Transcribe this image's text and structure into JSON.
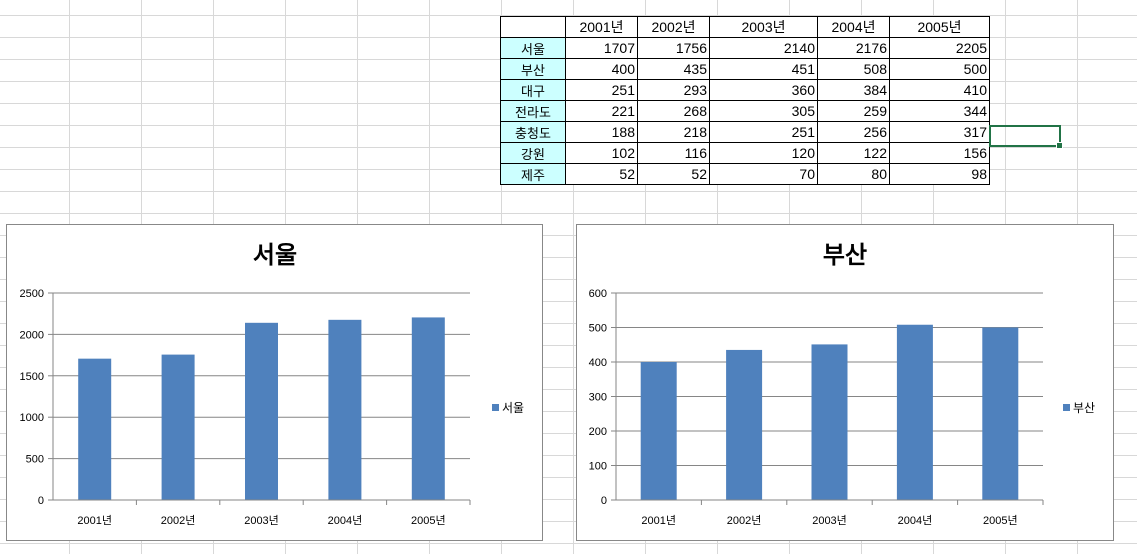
{
  "table": {
    "headers": [
      "",
      "2001년",
      "2002년",
      "2003년",
      "2004년",
      "2005년"
    ],
    "rows": [
      {
        "region": "서울",
        "values": [
          "1707",
          "1756",
          "2140",
          "2176",
          "2205"
        ]
      },
      {
        "region": "부산",
        "values": [
          "400",
          "435",
          "451",
          "508",
          "500"
        ]
      },
      {
        "region": "대구",
        "values": [
          "251",
          "293",
          "360",
          "384",
          "410"
        ]
      },
      {
        "region": "전라도",
        "values": [
          "221",
          "268",
          "305",
          "259",
          "344"
        ]
      },
      {
        "region": "충청도",
        "values": [
          "188",
          "218",
          "251",
          "256",
          "317"
        ]
      },
      {
        "region": "강원",
        "values": [
          "102",
          "116",
          "120",
          "122",
          "156"
        ]
      },
      {
        "region": "제주",
        "values": [
          "52",
          "52",
          "70",
          "80",
          "98"
        ]
      }
    ],
    "row_header_color": "#ccffff"
  },
  "selection": {
    "active_cell": "G6"
  },
  "chart_data": [
    {
      "type": "bar",
      "title": "서울",
      "categories": [
        "2001년",
        "2002년",
        "2003년",
        "2004년",
        "2005년"
      ],
      "series": [
        {
          "name": "서울",
          "values": [
            1707,
            1756,
            2140,
            2176,
            2205
          ],
          "color": "#4f81bd"
        }
      ],
      "ylim": [
        0,
        2500
      ],
      "yticks": [
        0,
        500,
        1000,
        1500,
        2000,
        2500
      ],
      "grid": true,
      "legend_position": "right"
    },
    {
      "type": "bar",
      "title": "부산",
      "categories": [
        "2001년",
        "2002년",
        "2003년",
        "2004년",
        "2005년"
      ],
      "series": [
        {
          "name": "부산",
          "values": [
            400,
            435,
            451,
            508,
            500
          ],
          "color": "#4f81bd"
        }
      ],
      "ylim": [
        0,
        600
      ],
      "yticks": [
        0,
        100,
        200,
        300,
        400,
        500,
        600
      ],
      "grid": true,
      "legend_position": "right"
    }
  ]
}
